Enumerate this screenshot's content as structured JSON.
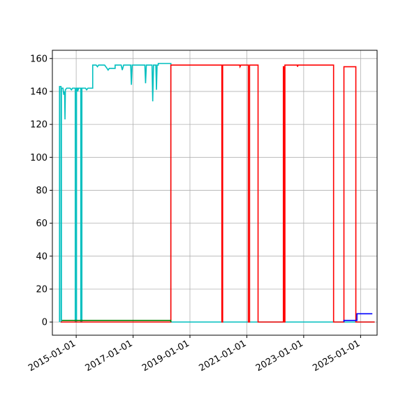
{
  "chart_data": {
    "type": "line",
    "title": "",
    "xlabel": "",
    "ylabel": "",
    "xlim": [
      "2014-03-01",
      "2025-08-01"
    ],
    "ylim": [
      -8,
      165
    ],
    "grid": true,
    "xticks": [
      "2015-01-01",
      "2017-01-01",
      "2019-01-01",
      "2021-01-01",
      "2023-01-01",
      "2025-01-01"
    ],
    "yticks": [
      0,
      20,
      40,
      60,
      80,
      100,
      120,
      140,
      160
    ],
    "colors": {
      "cyan": "#00bfbf",
      "red": "#ff0000",
      "green": "#008000",
      "blue": "#0000ff"
    },
    "series": [
      {
        "color": "cyan",
        "points": [
          [
            "2014-06-01",
            0
          ],
          [
            "2014-06-01",
            143
          ],
          [
            "2014-06-20",
            143
          ],
          [
            "2014-06-20",
            0
          ],
          [
            "2014-06-25",
            0
          ],
          [
            "2014-06-25",
            142
          ],
          [
            "2014-07-15",
            142
          ],
          [
            "2014-07-25",
            138
          ],
          [
            "2014-08-05",
            140
          ],
          [
            "2014-08-10",
            123
          ],
          [
            "2014-08-15",
            141
          ],
          [
            "2014-09-01",
            142
          ],
          [
            "2014-10-15",
            142
          ],
          [
            "2014-11-01",
            141
          ],
          [
            "2014-11-15",
            142
          ],
          [
            "2014-12-20",
            142
          ],
          [
            "2014-12-20",
            0
          ],
          [
            "2015-01-05",
            0
          ],
          [
            "2015-01-05",
            142
          ],
          [
            "2015-01-20",
            142
          ],
          [
            "2015-01-20",
            140
          ],
          [
            "2015-02-01",
            142
          ],
          [
            "2015-03-01",
            142
          ],
          [
            "2015-03-01",
            0
          ],
          [
            "2015-03-15",
            0
          ],
          [
            "2015-03-15",
            142
          ],
          [
            "2015-05-01",
            142
          ],
          [
            "2015-05-15",
            141
          ],
          [
            "2015-06-01",
            142
          ],
          [
            "2015-08-01",
            142
          ],
          [
            "2015-08-01",
            156
          ],
          [
            "2015-09-15",
            156
          ],
          [
            "2015-10-01",
            155
          ],
          [
            "2015-10-15",
            156
          ],
          [
            "2016-01-01",
            156
          ],
          [
            "2016-02-01",
            154
          ],
          [
            "2016-02-15",
            153
          ],
          [
            "2016-03-01",
            154
          ],
          [
            "2016-05-15",
            154
          ],
          [
            "2016-05-15",
            156
          ],
          [
            "2016-08-01",
            156
          ],
          [
            "2016-08-15",
            153
          ],
          [
            "2016-09-01",
            156
          ],
          [
            "2016-12-01",
            156
          ],
          [
            "2016-12-10",
            144
          ],
          [
            "2016-12-20",
            156
          ],
          [
            "2017-06-01",
            156
          ],
          [
            "2017-06-10",
            145
          ],
          [
            "2017-06-20",
            156
          ],
          [
            "2017-09-01",
            156
          ],
          [
            "2017-09-10",
            134
          ],
          [
            "2017-09-20",
            156
          ],
          [
            "2017-10-20",
            156
          ],
          [
            "2017-10-28",
            141
          ],
          [
            "2017-11-05",
            156
          ],
          [
            "2017-11-20",
            156
          ],
          [
            "2017-11-20",
            157
          ],
          [
            "2018-05-01",
            157
          ],
          [
            "2018-05-01",
            0
          ],
          [
            "2025-07-01",
            0
          ]
        ]
      },
      {
        "color": "red",
        "points": [
          [
            "2014-06-15",
            0
          ],
          [
            "2018-05-01",
            0
          ],
          [
            "2018-05-01",
            156
          ],
          [
            "2020-02-15",
            156
          ],
          [
            "2020-02-15",
            0
          ],
          [
            "2020-02-25",
            0
          ],
          [
            "2020-02-25",
            156
          ],
          [
            "2020-10-01",
            156
          ],
          [
            "2020-10-05",
            155
          ],
          [
            "2020-10-15",
            156
          ],
          [
            "2021-01-20",
            156
          ],
          [
            "2021-01-20",
            0
          ],
          [
            "2021-02-05",
            0
          ],
          [
            "2021-02-05",
            156
          ],
          [
            "2021-05-25",
            156
          ],
          [
            "2021-05-25",
            0
          ],
          [
            "2022-04-15",
            0
          ],
          [
            "2022-04-15",
            155
          ],
          [
            "2022-04-25",
            155
          ],
          [
            "2022-04-25",
            0
          ],
          [
            "2022-05-05",
            0
          ],
          [
            "2022-05-05",
            156
          ],
          [
            "2022-10-10",
            156
          ],
          [
            "2022-10-15",
            155
          ],
          [
            "2022-10-20",
            156
          ],
          [
            "2024-01-20",
            156
          ],
          [
            "2024-01-20",
            0
          ],
          [
            "2024-06-01",
            0
          ],
          [
            "2024-06-01",
            155
          ],
          [
            "2024-11-01",
            155
          ],
          [
            "2024-11-01",
            0
          ],
          [
            "2025-07-01",
            0
          ]
        ]
      },
      {
        "color": "green",
        "points": [
          [
            "2014-07-01",
            1
          ],
          [
            "2018-05-01",
            1
          ],
          [
            "2018-05-01",
            0
          ]
        ]
      },
      {
        "color": "blue",
        "points": [
          [
            "2024-06-01",
            0
          ],
          [
            "2024-06-01",
            1
          ],
          [
            "2024-11-15",
            1
          ],
          [
            "2024-11-15",
            5
          ],
          [
            "2025-06-01",
            5
          ]
        ]
      }
    ]
  }
}
